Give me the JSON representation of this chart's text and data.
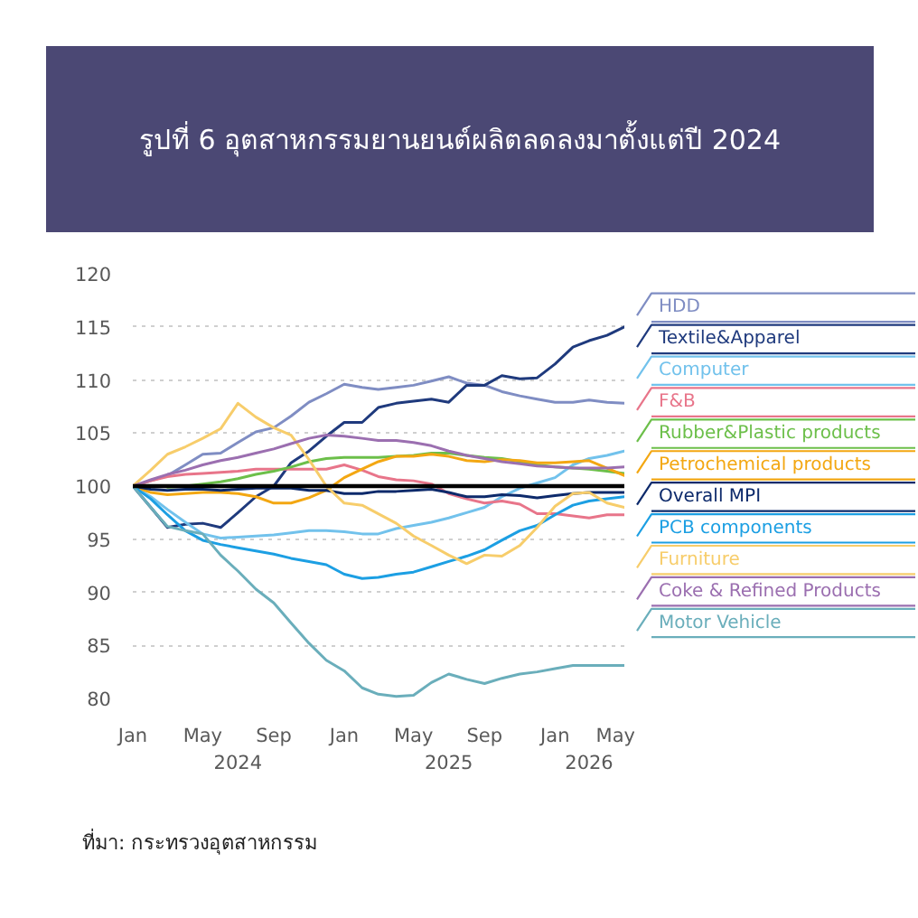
{
  "chart_data": {
    "type": "line",
    "title": "รูปที่ 6 อุตสาหกรรมยานยนต์ผลิตลดลงมาตั้งแต่ปี 2024",
    "annotations": [
      "ที่มา: กระทรวงอุตสาหกรรม"
    ],
    "x": [
      "2024-01",
      "2024-02",
      "2024-03",
      "2024-04",
      "2024-05",
      "2024-06",
      "2024-07",
      "2024-08",
      "2024-09",
      "2024-10",
      "2024-11",
      "2024-12",
      "2025-01",
      "2025-02",
      "2025-03",
      "2025-04",
      "2025-05",
      "2025-06",
      "2025-07",
      "2025-08",
      "2025-09",
      "2025-10",
      "2025-11",
      "2025-12",
      "2026-01",
      "2026-02",
      "2026-03",
      "2026-04",
      "2026-05"
    ],
    "xlim": [
      "2024-01",
      "2026-05"
    ],
    "xticks": [
      {
        "value": "2024-01",
        "label": "Jan"
      },
      {
        "value": "2024-05",
        "label": "May"
      },
      {
        "value": "2024-09",
        "label": "Sep"
      },
      {
        "value": "2025-01",
        "label": "Jan"
      },
      {
        "value": "2025-05",
        "label": "May"
      },
      {
        "value": "2025-09",
        "label": "Sep"
      },
      {
        "value": "2026-01",
        "label": "Jan"
      },
      {
        "value": "2026-05",
        "label": "May"
      }
    ],
    "x2lim": [
      "2024-01",
      "2026-05"
    ],
    "x2ticks": [
      {
        "value": "2024-07",
        "label": "2024"
      },
      {
        "value": "2025-07",
        "label": "2025"
      },
      {
        "value": "2026-03",
        "label": "2026"
      }
    ],
    "ylim": [
      80,
      120
    ],
    "yticks": [
      80,
      85,
      90,
      95,
      100,
      105,
      110,
      115,
      120
    ],
    "grid": "y",
    "legend": "right",
    "line_style": "solid",
    "ref_lines": [
      {
        "axis": "y",
        "value": 100,
        "color": "#000000"
      }
    ],
    "series": [
      {
        "name": "HDD",
        "color": "#7f8dc3",
        "values": [
          100,
          100.5,
          101,
          102,
          103,
          103.1,
          104.1,
          105.1,
          105.5,
          106.6,
          107.9,
          108.7,
          109.6,
          109.3,
          109.1,
          109.3,
          109.5,
          109.9,
          110.3,
          109.7,
          109.5,
          108.9,
          108.5,
          108.2,
          107.9,
          107.9,
          108.1,
          107.9,
          107.8
        ]
      },
      {
        "name": "Textile&Apparel",
        "color": "#1f3a7d",
        "values": [
          100,
          98,
          96.1,
          96.4,
          96.5,
          96.1,
          97.5,
          99,
          100,
          102.2,
          103.3,
          104.7,
          106,
          106,
          107.4,
          107.8,
          108,
          108.2,
          107.9,
          109.5,
          109.5,
          110.4,
          110.1,
          110.2,
          111.5,
          113.1,
          113.7,
          114.2,
          115
        ]
      },
      {
        "name": "Computer",
        "color": "#72c2ec",
        "values": [
          100,
          99,
          97.8,
          96.6,
          95.5,
          95.1,
          95.2,
          95.3,
          95.4,
          95.6,
          95.8,
          95.8,
          95.7,
          95.5,
          95.5,
          96,
          96.3,
          96.6,
          97,
          97.5,
          98,
          99,
          99.8,
          100.3,
          100.8,
          102,
          102.6,
          102.9,
          103.3
        ]
      },
      {
        "name": "F&B",
        "color": "#e8758a",
        "values": [
          100,
          100.5,
          100.9,
          101.1,
          101.2,
          101.3,
          101.4,
          101.6,
          101.6,
          101.6,
          101.6,
          101.6,
          102,
          101.5,
          100.9,
          100.6,
          100.5,
          100.2,
          99.3,
          98.8,
          98.4,
          98.6,
          98.3,
          97.4,
          97.4,
          97.2,
          97,
          97.3,
          97.3
        ]
      },
      {
        "name": "Rubber&Plastic products",
        "color": "#6cbf4a",
        "values": [
          null,
          null,
          99.9,
          100,
          100.2,
          100.4,
          100.7,
          101.1,
          101.4,
          101.8,
          102.3,
          102.6,
          102.7,
          102.7,
          102.7,
          102.8,
          102.9,
          103.1,
          103.1,
          102.9,
          102.7,
          102.6,
          102.3,
          102,
          101.8,
          101.7,
          101.6,
          101.4,
          101.2
        ]
      },
      {
        "name": "Petrochemical products",
        "color": "#f3a712",
        "values": [
          100,
          99.4,
          99.2,
          99.3,
          99.4,
          99.4,
          99.3,
          99,
          98.4,
          98.4,
          98.9,
          99.6,
          100.8,
          101.6,
          102.3,
          102.8,
          102.8,
          103,
          102.8,
          102.4,
          102.3,
          102.5,
          102.4,
          102.2,
          102.2,
          102.3,
          102.4,
          101.7,
          101
        ]
      },
      {
        "name": "Overall MPI",
        "color": "#0d2a6b",
        "values": [
          100,
          99.7,
          99.6,
          99.7,
          99.7,
          99.6,
          99.7,
          99.8,
          99.8,
          99.8,
          99.6,
          99.6,
          99.3,
          99.3,
          99.5,
          99.5,
          99.6,
          99.7,
          99.4,
          99,
          99,
          99.2,
          99.1,
          98.9,
          99.1,
          99.3,
          99.4,
          99.4,
          99.4
        ]
      },
      {
        "name": "PCB components",
        "color": "#1c9fe3",
        "values": [
          100,
          98.8,
          97.3,
          95.8,
          94.9,
          94.5,
          94.2,
          93.9,
          93.6,
          93.2,
          92.9,
          92.6,
          91.7,
          91.3,
          91.4,
          91.7,
          91.9,
          92.4,
          92.9,
          93.4,
          94,
          94.9,
          95.8,
          96.3,
          97.3,
          98.2,
          98.6,
          98.8,
          99
        ]
      },
      {
        "name": "Furniture",
        "color": "#f7cd6b",
        "values": [
          100,
          101.5,
          103,
          103.7,
          104.5,
          105.4,
          107.8,
          106.5,
          105.5,
          104.8,
          102.5,
          100,
          98.4,
          98.2,
          97.4,
          96.5,
          95.3,
          94.4,
          93.5,
          92.7,
          93.5,
          93.4,
          94.4,
          96.1,
          98.1,
          99.3,
          99.4,
          98.4,
          98
        ]
      },
      {
        "name": "Coke & Refined Products",
        "color": "#9b6fb0",
        "values": [
          100,
          100.6,
          101.1,
          101.5,
          102,
          102.4,
          102.7,
          103.1,
          103.5,
          104,
          104.5,
          104.8,
          104.7,
          104.5,
          104.3,
          104.3,
          104.1,
          103.8,
          103.3,
          102.9,
          102.6,
          102.3,
          102.1,
          101.9,
          101.8,
          101.7,
          101.7,
          101.7,
          101.8
        ]
      },
      {
        "name": "Motor Vehicle",
        "color": "#6aaebb",
        "values": [
          100,
          98,
          96.2,
          95.8,
          95.5,
          93.5,
          92,
          90.3,
          89,
          87.1,
          85.2,
          83.6,
          82.6,
          81,
          80.4,
          80.2,
          80.3,
          81.5,
          82.3,
          81.8,
          81.4,
          81.9,
          82.3,
          82.5,
          82.8,
          83.1,
          83.1,
          83.1,
          83.1
        ]
      }
    ]
  }
}
